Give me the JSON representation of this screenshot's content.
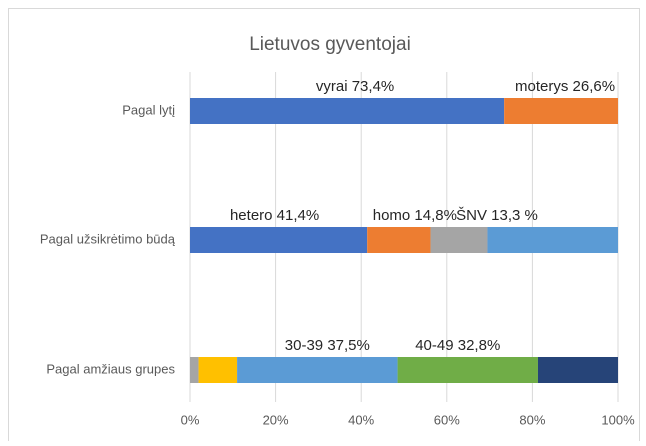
{
  "chart_data": {
    "type": "stacked_barh",
    "title": "Lietuvos gyventojai",
    "xlim": [
      0,
      100
    ],
    "xticks": [
      {
        "value": 0,
        "label": "0%"
      },
      {
        "value": 20,
        "label": "20%"
      },
      {
        "value": 40,
        "label": "40%"
      },
      {
        "value": 60,
        "label": "60%"
      },
      {
        "value": 80,
        "label": "80%"
      },
      {
        "value": 100,
        "label": "100%"
      }
    ],
    "grid": true,
    "bars": [
      {
        "category": "Pagal lytį",
        "segments": [
          {
            "value": 73.4,
            "color": "#4472c4",
            "label": "vyrai 73,4%"
          },
          {
            "value": 26.6,
            "color": "#ed7d31",
            "label": "moterys 26,6%"
          }
        ]
      },
      {
        "category": "Pagal užsikrėtimo būdą",
        "segments": [
          {
            "value": 41.4,
            "color": "#4472c4",
            "label": "hetero 41,4%"
          },
          {
            "value": 14.8,
            "color": "#ed7d31",
            "label": "homo 14,8%"
          },
          {
            "value": 13.3,
            "color": "#a5a5a5",
            "label": "ŠNV 13,3 %"
          },
          {
            "value": 30.5,
            "color": "#5b9bd5"
          }
        ]
      },
      {
        "category": "Pagal amžiaus grupes",
        "segments": [
          {
            "value": 2,
            "color": "#a5a5a5"
          },
          {
            "value": 9,
            "color": "#ffc000"
          },
          {
            "value": 37.5,
            "color": "#5b9bd5",
            "label": "30-39 37,5%"
          },
          {
            "value": 32.8,
            "color": "#70ad47",
            "label": "40-49 32,8%"
          },
          {
            "value": 18.7,
            "color": "#264478"
          }
        ]
      }
    ]
  }
}
